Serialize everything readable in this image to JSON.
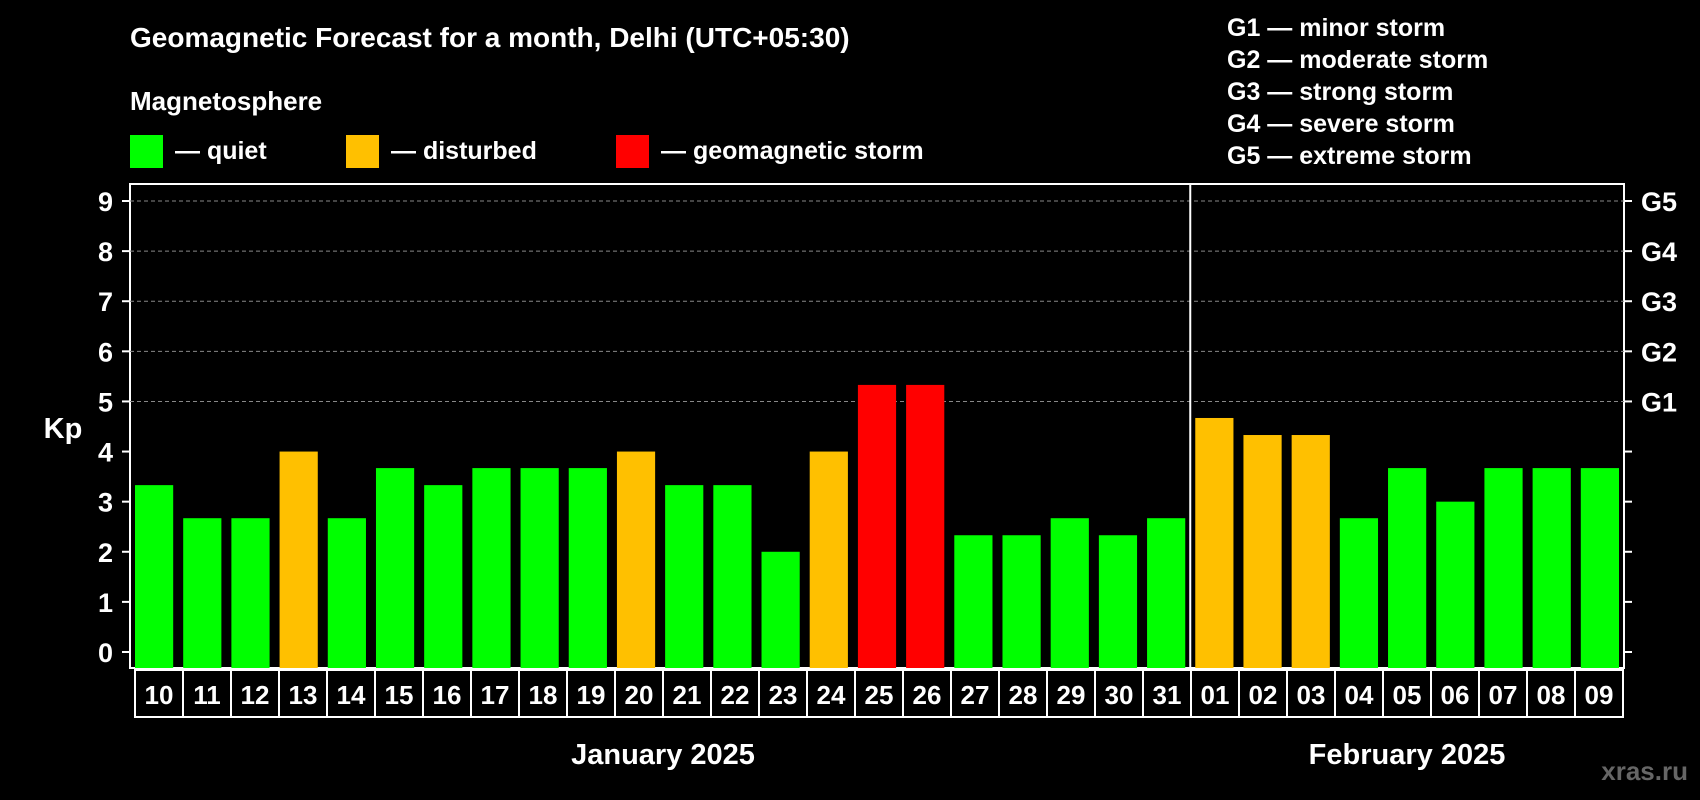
{
  "title": "Geomagnetic Forecast for a month, Delhi (UTC+05:30)",
  "subtitle": "Magnetosphere",
  "legend": [
    {
      "label": "— quiet",
      "color": "#00ff00"
    },
    {
      "label": "— disturbed",
      "color": "#ffc000"
    },
    {
      "label": "— geomagnetic storm",
      "color": "#ff0000"
    }
  ],
  "storm_levels": [
    "G1 — minor storm",
    "G2 — moderate storm",
    "G3 — strong storm",
    "G4 — severe storm",
    "G5 — extreme storm"
  ],
  "watermark": "xras.ru",
  "colors": {
    "quiet": "#00ff00",
    "disturbed": "#ffc000",
    "storm": "#ff0000"
  },
  "chart_data": {
    "type": "bar",
    "ylabel": "Kp",
    "ylim": [
      0,
      9
    ],
    "yticks": [
      "0",
      "1",
      "2",
      "3",
      "4",
      "5",
      "6",
      "7",
      "8",
      "9"
    ],
    "right_ticks": [
      {
        "value": 5,
        "label": "G1"
      },
      {
        "value": 6,
        "label": "G2"
      },
      {
        "value": 7,
        "label": "G3"
      },
      {
        "value": 8,
        "label": "G4"
      },
      {
        "value": 9,
        "label": "G5"
      }
    ],
    "grid": "dashed horizontal at integer Kp 5-9",
    "categories": [
      "10",
      "11",
      "12",
      "13",
      "14",
      "15",
      "16",
      "17",
      "18",
      "19",
      "20",
      "21",
      "22",
      "23",
      "24",
      "25",
      "26",
      "27",
      "28",
      "29",
      "30",
      "31",
      "01",
      "02",
      "03",
      "04",
      "05",
      "06",
      "07",
      "08",
      "09"
    ],
    "values": [
      3.33,
      2.67,
      2.67,
      4.0,
      2.67,
      3.67,
      3.33,
      3.67,
      3.67,
      3.67,
      4.0,
      3.33,
      3.33,
      2.0,
      4.0,
      5.33,
      5.33,
      2.33,
      2.33,
      2.67,
      2.33,
      2.67,
      4.67,
      4.33,
      4.33,
      2.67,
      3.67,
      3.0,
      3.67,
      3.67,
      3.67
    ],
    "status": [
      "quiet",
      "quiet",
      "quiet",
      "disturbed",
      "quiet",
      "quiet",
      "quiet",
      "quiet",
      "quiet",
      "quiet",
      "disturbed",
      "quiet",
      "quiet",
      "quiet",
      "disturbed",
      "storm",
      "storm",
      "quiet",
      "quiet",
      "quiet",
      "quiet",
      "quiet",
      "disturbed",
      "disturbed",
      "disturbed",
      "quiet",
      "quiet",
      "quiet",
      "quiet",
      "quiet",
      "quiet"
    ],
    "months": [
      {
        "label": "January 2025",
        "first_index": 0,
        "count": 22
      },
      {
        "label": "February 2025",
        "first_index": 22,
        "count": 9
      }
    ]
  }
}
